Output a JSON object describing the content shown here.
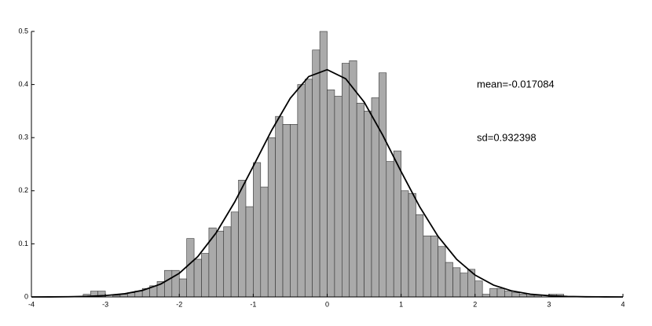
{
  "chart_data": {
    "type": "histogram",
    "bins": [
      -3.3,
      -3.2,
      -3.1,
      -3.0,
      -2.9,
      -2.8,
      -2.7,
      -2.6,
      -2.5,
      -2.4,
      -2.3,
      -2.2,
      -2.1,
      -2.0,
      -1.9,
      -1.8,
      -1.7,
      -1.6,
      -1.5,
      -1.4,
      -1.3,
      -1.2,
      -1.1,
      -1.0,
      -0.9,
      -0.8,
      -0.7,
      -0.6,
      -0.5,
      -0.4,
      -0.3,
      -0.2,
      -0.1,
      0.0,
      0.1,
      0.2,
      0.3,
      0.4,
      0.5,
      0.6,
      0.7,
      0.8,
      0.9,
      1.0,
      1.1,
      1.2,
      1.3,
      1.4,
      1.5,
      1.6,
      1.7,
      1.8,
      1.9,
      2.0,
      2.1,
      2.2,
      2.3,
      2.4,
      2.5,
      2.6,
      2.7,
      2.8,
      2.9,
      3.0,
      3.1,
      3.2
    ],
    "values": [
      0.005,
      0.011,
      0.011,
      0,
      0.003,
      0.005,
      0.008,
      0.011,
      0.016,
      0.021,
      0.029,
      0.05,
      0.05,
      0.034,
      0.11,
      0.071,
      0.082,
      0.13,
      0.124,
      0.132,
      0.16,
      0.22,
      0.17,
      0.253,
      0.207,
      0.3,
      0.34,
      0.325,
      0.325,
      0.4,
      0.41,
      0.465,
      0.5,
      0.39,
      0.378,
      0.44,
      0.445,
      0.365,
      0.35,
      0.375,
      0.422,
      0.255,
      0.275,
      0.2,
      0.195,
      0.155,
      0.115,
      0.115,
      0.095,
      0.065,
      0.055,
      0.045,
      0.052,
      0.03,
      0.005,
      0.016,
      0.016,
      0.011,
      0.008,
      0.005,
      0.003,
      0.003,
      0,
      0.005,
      0.005
    ],
    "color": "#aaaaaa",
    "curve": {
      "color": "#000000",
      "x": [
        -4,
        -3.75,
        -3.5,
        -3.25,
        -3,
        -2.75,
        -2.5,
        -2.25,
        -2,
        -1.75,
        -1.5,
        -1.25,
        -1,
        -0.75,
        -0.5,
        -0.25,
        0,
        0.25,
        0.5,
        0.75,
        1,
        1.25,
        1.5,
        1.75,
        2,
        2.25,
        2.5,
        2.75,
        3,
        3.25,
        3.5,
        3.75,
        4
      ],
      "values": [
        0,
        0.0001,
        0.0004,
        0.001,
        0.0026,
        0.0058,
        0.0123,
        0.0243,
        0.0446,
        0.076,
        0.121,
        0.179,
        0.246,
        0.314,
        0.374,
        0.415,
        0.428,
        0.411,
        0.367,
        0.305,
        0.236,
        0.17,
        0.114,
        0.071,
        0.0412,
        0.0223,
        0.0112,
        0.0052,
        0.0023,
        0.0009,
        0.0003,
        0.0001,
        0
      ]
    },
    "annotations": [
      "mean=-0.017084",
      "sd=0.932398"
    ],
    "xlim": [
      -4,
      4
    ],
    "xticks": [
      -4,
      -3,
      -2,
      -1,
      0,
      1,
      2,
      3,
      4
    ],
    "ylim": [
      0,
      0.5
    ],
    "yticks": [
      0,
      0.1,
      0.2,
      0.3,
      0.4,
      0.5
    ]
  }
}
